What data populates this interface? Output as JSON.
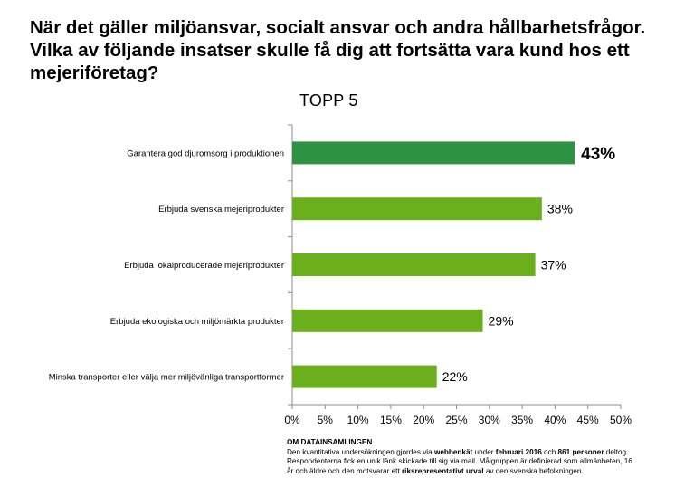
{
  "header": {
    "question_line1": "När det gäller miljöansvar, socialt ansvar och andra hållbarhetsfrågor.",
    "question_line2": "Vilka av följande insatser skulle få dig att fortsätta vara kund hos ett",
    "question_line3": "mejeriföretag?"
  },
  "chart_data": {
    "type": "bar",
    "orientation": "horizontal",
    "title": "TOPP 5",
    "categories": [
      "Garantera god djuromsorg i produktionen",
      "Erbjuda svenska mejeriprodukter",
      "Erbjuda lokalproducerade mejeriprodukter",
      "Erbjuda ekologiska och miljömärkta produkter",
      "Minska transporter eller välja mer miljövänliga transportformer"
    ],
    "values": [
      43,
      38,
      37,
      29,
      22
    ],
    "data_labels": [
      "43%",
      "38%",
      "37%",
      "29%",
      "22%"
    ],
    "xlim": [
      0,
      50
    ],
    "xticks": [
      "0%",
      "5%",
      "10%",
      "15%",
      "20%",
      "25%",
      "30%",
      "35%",
      "40%",
      "45%",
      "50%"
    ],
    "grid": false,
    "colors": {
      "highlight": "#2e9244",
      "bar": "#6caf1c",
      "axis": "#8c8c8c"
    }
  },
  "footer": {
    "title": "OM DATAINSAMLINGEN",
    "l1a": "Den kvantitativa undersökningen gjordes via ",
    "l1b": "webbenkät",
    "l1c": " under ",
    "l1d": "februari 2016",
    "l1e": " och ",
    "l1f": "861 personer",
    "l1g": " deltog.",
    "l2": "Respondenterna fick en unik länk skickade till sig via mail. Målgruppen är definierad som allmänheten, 16",
    "l3a": "år och äldre och den motsvarar ett ",
    "l3b": "riksrepresentativt urval",
    "l3c": " av den svenska befolkningen."
  }
}
